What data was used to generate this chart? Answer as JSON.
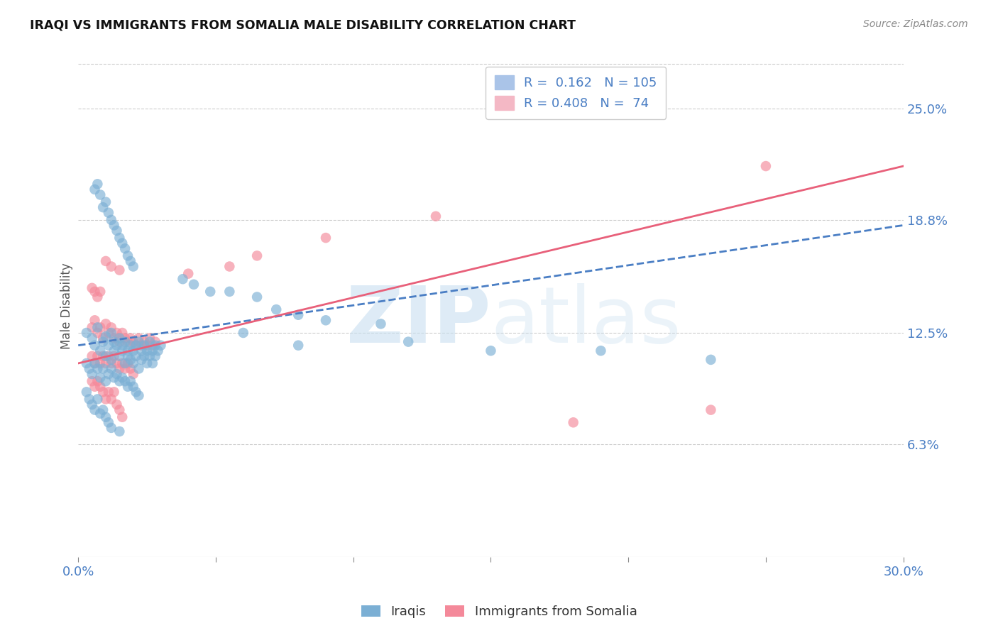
{
  "title": "IRAQI VS IMMIGRANTS FROM SOMALIA MALE DISABILITY CORRELATION CHART",
  "source": "Source: ZipAtlas.com",
  "ylabel": "Male Disability",
  "xlim": [
    0.0,
    0.3
  ],
  "ylim": [
    0.0,
    0.28
  ],
  "xticks": [
    0.0,
    0.05,
    0.1,
    0.15,
    0.2,
    0.25,
    0.3
  ],
  "xtick_labels": [
    "0.0%",
    "",
    "",
    "",
    "",
    "",
    "30.0%"
  ],
  "ytick_labels_right": [
    "25.0%",
    "18.8%",
    "12.5%",
    "6.3%"
  ],
  "ytick_values_right": [
    0.25,
    0.188,
    0.125,
    0.063
  ],
  "watermark_zip": "ZIP",
  "watermark_atlas": "atlas",
  "legend_label_iraqis": "Iraqis",
  "legend_label_somalia": "Immigrants from Somalia",
  "iraqis_color": "#7bafd4",
  "somalia_color": "#f4899a",
  "iraqis_line_color": "#4a7ec4",
  "somalia_line_color": "#e8607a",
  "iraqis_scatter": [
    [
      0.003,
      0.125
    ],
    [
      0.005,
      0.122
    ],
    [
      0.006,
      0.118
    ],
    [
      0.007,
      0.128
    ],
    [
      0.008,
      0.115
    ],
    [
      0.009,
      0.12
    ],
    [
      0.01,
      0.123
    ],
    [
      0.01,
      0.112
    ],
    [
      0.011,
      0.118
    ],
    [
      0.012,
      0.125
    ],
    [
      0.012,
      0.11
    ],
    [
      0.013,
      0.12
    ],
    [
      0.013,
      0.115
    ],
    [
      0.014,
      0.118
    ],
    [
      0.015,
      0.122
    ],
    [
      0.015,
      0.112
    ],
    [
      0.016,
      0.118
    ],
    [
      0.016,
      0.115
    ],
    [
      0.017,
      0.12
    ],
    [
      0.017,
      0.108
    ],
    [
      0.018,
      0.115
    ],
    [
      0.018,
      0.112
    ],
    [
      0.019,
      0.118
    ],
    [
      0.019,
      0.11
    ],
    [
      0.02,
      0.115
    ],
    [
      0.02,
      0.108
    ],
    [
      0.021,
      0.112
    ],
    [
      0.021,
      0.118
    ],
    [
      0.022,
      0.12
    ],
    [
      0.022,
      0.105
    ],
    [
      0.023,
      0.115
    ],
    [
      0.023,
      0.11
    ],
    [
      0.024,
      0.118
    ],
    [
      0.024,
      0.112
    ],
    [
      0.025,
      0.115
    ],
    [
      0.025,
      0.108
    ],
    [
      0.026,
      0.12
    ],
    [
      0.026,
      0.112
    ],
    [
      0.027,
      0.115
    ],
    [
      0.027,
      0.108
    ],
    [
      0.028,
      0.118
    ],
    [
      0.028,
      0.112
    ],
    [
      0.029,
      0.115
    ],
    [
      0.03,
      0.118
    ],
    [
      0.003,
      0.108
    ],
    [
      0.004,
      0.105
    ],
    [
      0.005,
      0.102
    ],
    [
      0.006,
      0.108
    ],
    [
      0.007,
      0.105
    ],
    [
      0.008,
      0.1
    ],
    [
      0.009,
      0.105
    ],
    [
      0.01,
      0.098
    ],
    [
      0.011,
      0.102
    ],
    [
      0.012,
      0.105
    ],
    [
      0.013,
      0.1
    ],
    [
      0.014,
      0.102
    ],
    [
      0.015,
      0.098
    ],
    [
      0.016,
      0.1
    ],
    [
      0.017,
      0.098
    ],
    [
      0.018,
      0.095
    ],
    [
      0.019,
      0.098
    ],
    [
      0.02,
      0.095
    ],
    [
      0.021,
      0.092
    ],
    [
      0.022,
      0.09
    ],
    [
      0.003,
      0.092
    ],
    [
      0.004,
      0.088
    ],
    [
      0.005,
      0.085
    ],
    [
      0.006,
      0.082
    ],
    [
      0.007,
      0.088
    ],
    [
      0.008,
      0.08
    ],
    [
      0.009,
      0.082
    ],
    [
      0.01,
      0.078
    ],
    [
      0.011,
      0.075
    ],
    [
      0.012,
      0.072
    ],
    [
      0.015,
      0.07
    ],
    [
      0.006,
      0.205
    ],
    [
      0.007,
      0.208
    ],
    [
      0.008,
      0.202
    ],
    [
      0.009,
      0.195
    ],
    [
      0.01,
      0.198
    ],
    [
      0.011,
      0.192
    ],
    [
      0.012,
      0.188
    ],
    [
      0.013,
      0.185
    ],
    [
      0.014,
      0.182
    ],
    [
      0.015,
      0.178
    ],
    [
      0.016,
      0.175
    ],
    [
      0.017,
      0.172
    ],
    [
      0.018,
      0.168
    ],
    [
      0.019,
      0.165
    ],
    [
      0.02,
      0.162
    ],
    [
      0.038,
      0.155
    ],
    [
      0.042,
      0.152
    ],
    [
      0.048,
      0.148
    ],
    [
      0.055,
      0.148
    ],
    [
      0.065,
      0.145
    ],
    [
      0.072,
      0.138
    ],
    [
      0.08,
      0.135
    ],
    [
      0.09,
      0.132
    ],
    [
      0.11,
      0.13
    ],
    [
      0.06,
      0.125
    ],
    [
      0.08,
      0.118
    ],
    [
      0.12,
      0.12
    ],
    [
      0.15,
      0.115
    ],
    [
      0.19,
      0.115
    ],
    [
      0.23,
      0.11
    ]
  ],
  "somalia_scatter": [
    [
      0.005,
      0.128
    ],
    [
      0.006,
      0.132
    ],
    [
      0.007,
      0.125
    ],
    [
      0.008,
      0.128
    ],
    [
      0.009,
      0.122
    ],
    [
      0.01,
      0.13
    ],
    [
      0.011,
      0.125
    ],
    [
      0.012,
      0.128
    ],
    [
      0.013,
      0.122
    ],
    [
      0.014,
      0.125
    ],
    [
      0.015,
      0.12
    ],
    [
      0.016,
      0.125
    ],
    [
      0.017,
      0.122
    ],
    [
      0.018,
      0.12
    ],
    [
      0.019,
      0.122
    ],
    [
      0.02,
      0.12
    ],
    [
      0.021,
      0.118
    ],
    [
      0.022,
      0.122
    ],
    [
      0.023,
      0.118
    ],
    [
      0.024,
      0.12
    ],
    [
      0.025,
      0.118
    ],
    [
      0.026,
      0.122
    ],
    [
      0.027,
      0.118
    ],
    [
      0.028,
      0.12
    ],
    [
      0.005,
      0.112
    ],
    [
      0.006,
      0.108
    ],
    [
      0.007,
      0.112
    ],
    [
      0.008,
      0.108
    ],
    [
      0.009,
      0.112
    ],
    [
      0.01,
      0.108
    ],
    [
      0.011,
      0.112
    ],
    [
      0.012,
      0.108
    ],
    [
      0.013,
      0.112
    ],
    [
      0.014,
      0.108
    ],
    [
      0.015,
      0.105
    ],
    [
      0.016,
      0.108
    ],
    [
      0.017,
      0.105
    ],
    [
      0.018,
      0.108
    ],
    [
      0.019,
      0.105
    ],
    [
      0.02,
      0.102
    ],
    [
      0.005,
      0.098
    ],
    [
      0.006,
      0.095
    ],
    [
      0.007,
      0.098
    ],
    [
      0.008,
      0.095
    ],
    [
      0.009,
      0.092
    ],
    [
      0.01,
      0.088
    ],
    [
      0.011,
      0.092
    ],
    [
      0.012,
      0.088
    ],
    [
      0.013,
      0.092
    ],
    [
      0.014,
      0.085
    ],
    [
      0.015,
      0.082
    ],
    [
      0.016,
      0.078
    ],
    [
      0.005,
      0.15
    ],
    [
      0.006,
      0.148
    ],
    [
      0.007,
      0.145
    ],
    [
      0.008,
      0.148
    ],
    [
      0.01,
      0.165
    ],
    [
      0.012,
      0.162
    ],
    [
      0.015,
      0.16
    ],
    [
      0.04,
      0.158
    ],
    [
      0.055,
      0.162
    ],
    [
      0.065,
      0.168
    ],
    [
      0.09,
      0.178
    ],
    [
      0.13,
      0.19
    ],
    [
      0.25,
      0.218
    ],
    [
      0.18,
      0.075
    ],
    [
      0.23,
      0.082
    ]
  ],
  "iraqis_line": {
    "x0": 0.0,
    "y0": 0.118,
    "x1": 0.3,
    "y1": 0.185
  },
  "somalia_line": {
    "x0": 0.0,
    "y0": 0.108,
    "x1": 0.3,
    "y1": 0.218
  }
}
